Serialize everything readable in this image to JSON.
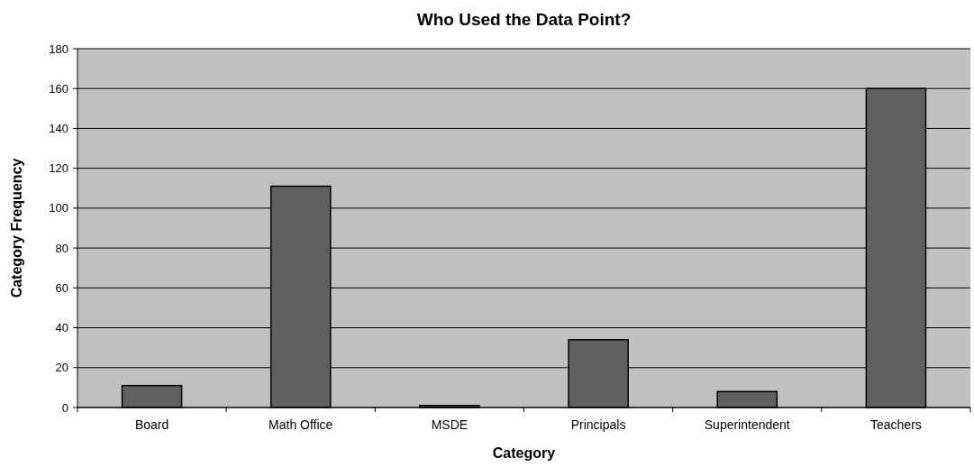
{
  "chart_data": {
    "type": "bar",
    "title": "Who Used the Data Point?",
    "xlabel": "Category",
    "ylabel": "Category Frequency",
    "categories": [
      "Board",
      "Math Office",
      "MSDE",
      "Principals",
      "Superintendent",
      "Teachers"
    ],
    "values": [
      11,
      111,
      1,
      34,
      8,
      160
    ],
    "color": "#606060",
    "ylim": [
      0,
      180
    ],
    "yticks": [
      0,
      20,
      40,
      60,
      80,
      100,
      120,
      140,
      160,
      180
    ],
    "grid": "y"
  }
}
